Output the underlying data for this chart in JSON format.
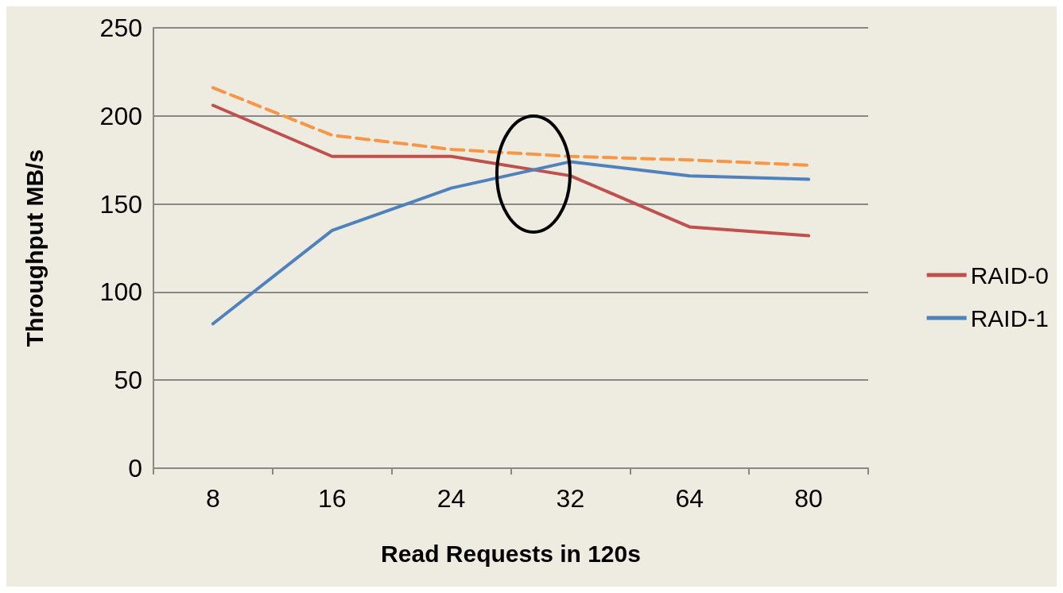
{
  "chart_data": {
    "type": "line",
    "xlabel": "Read Requests in 120s",
    "ylabel": "Throughput MB/s",
    "categories": [
      "8",
      "16",
      "24",
      "32",
      "64",
      "80"
    ],
    "series": [
      {
        "name": "RAID-0",
        "color": "#c0504d",
        "values": [
          206,
          177,
          177,
          166,
          137,
          132
        ]
      },
      {
        "name": "RAID-1",
        "color": "#4f81bd",
        "values": [
          82,
          135,
          159,
          174,
          166,
          164
        ]
      },
      {
        "color": "#f79646",
        "values": [
          216,
          189,
          181,
          177,
          175,
          172
        ],
        "line_style": "dashed"
      }
    ],
    "ylim": [
      0,
      250
    ],
    "yticks": [
      0,
      50,
      100,
      150,
      200,
      250
    ],
    "grid": "y",
    "legend": "right",
    "marker": "none"
  }
}
